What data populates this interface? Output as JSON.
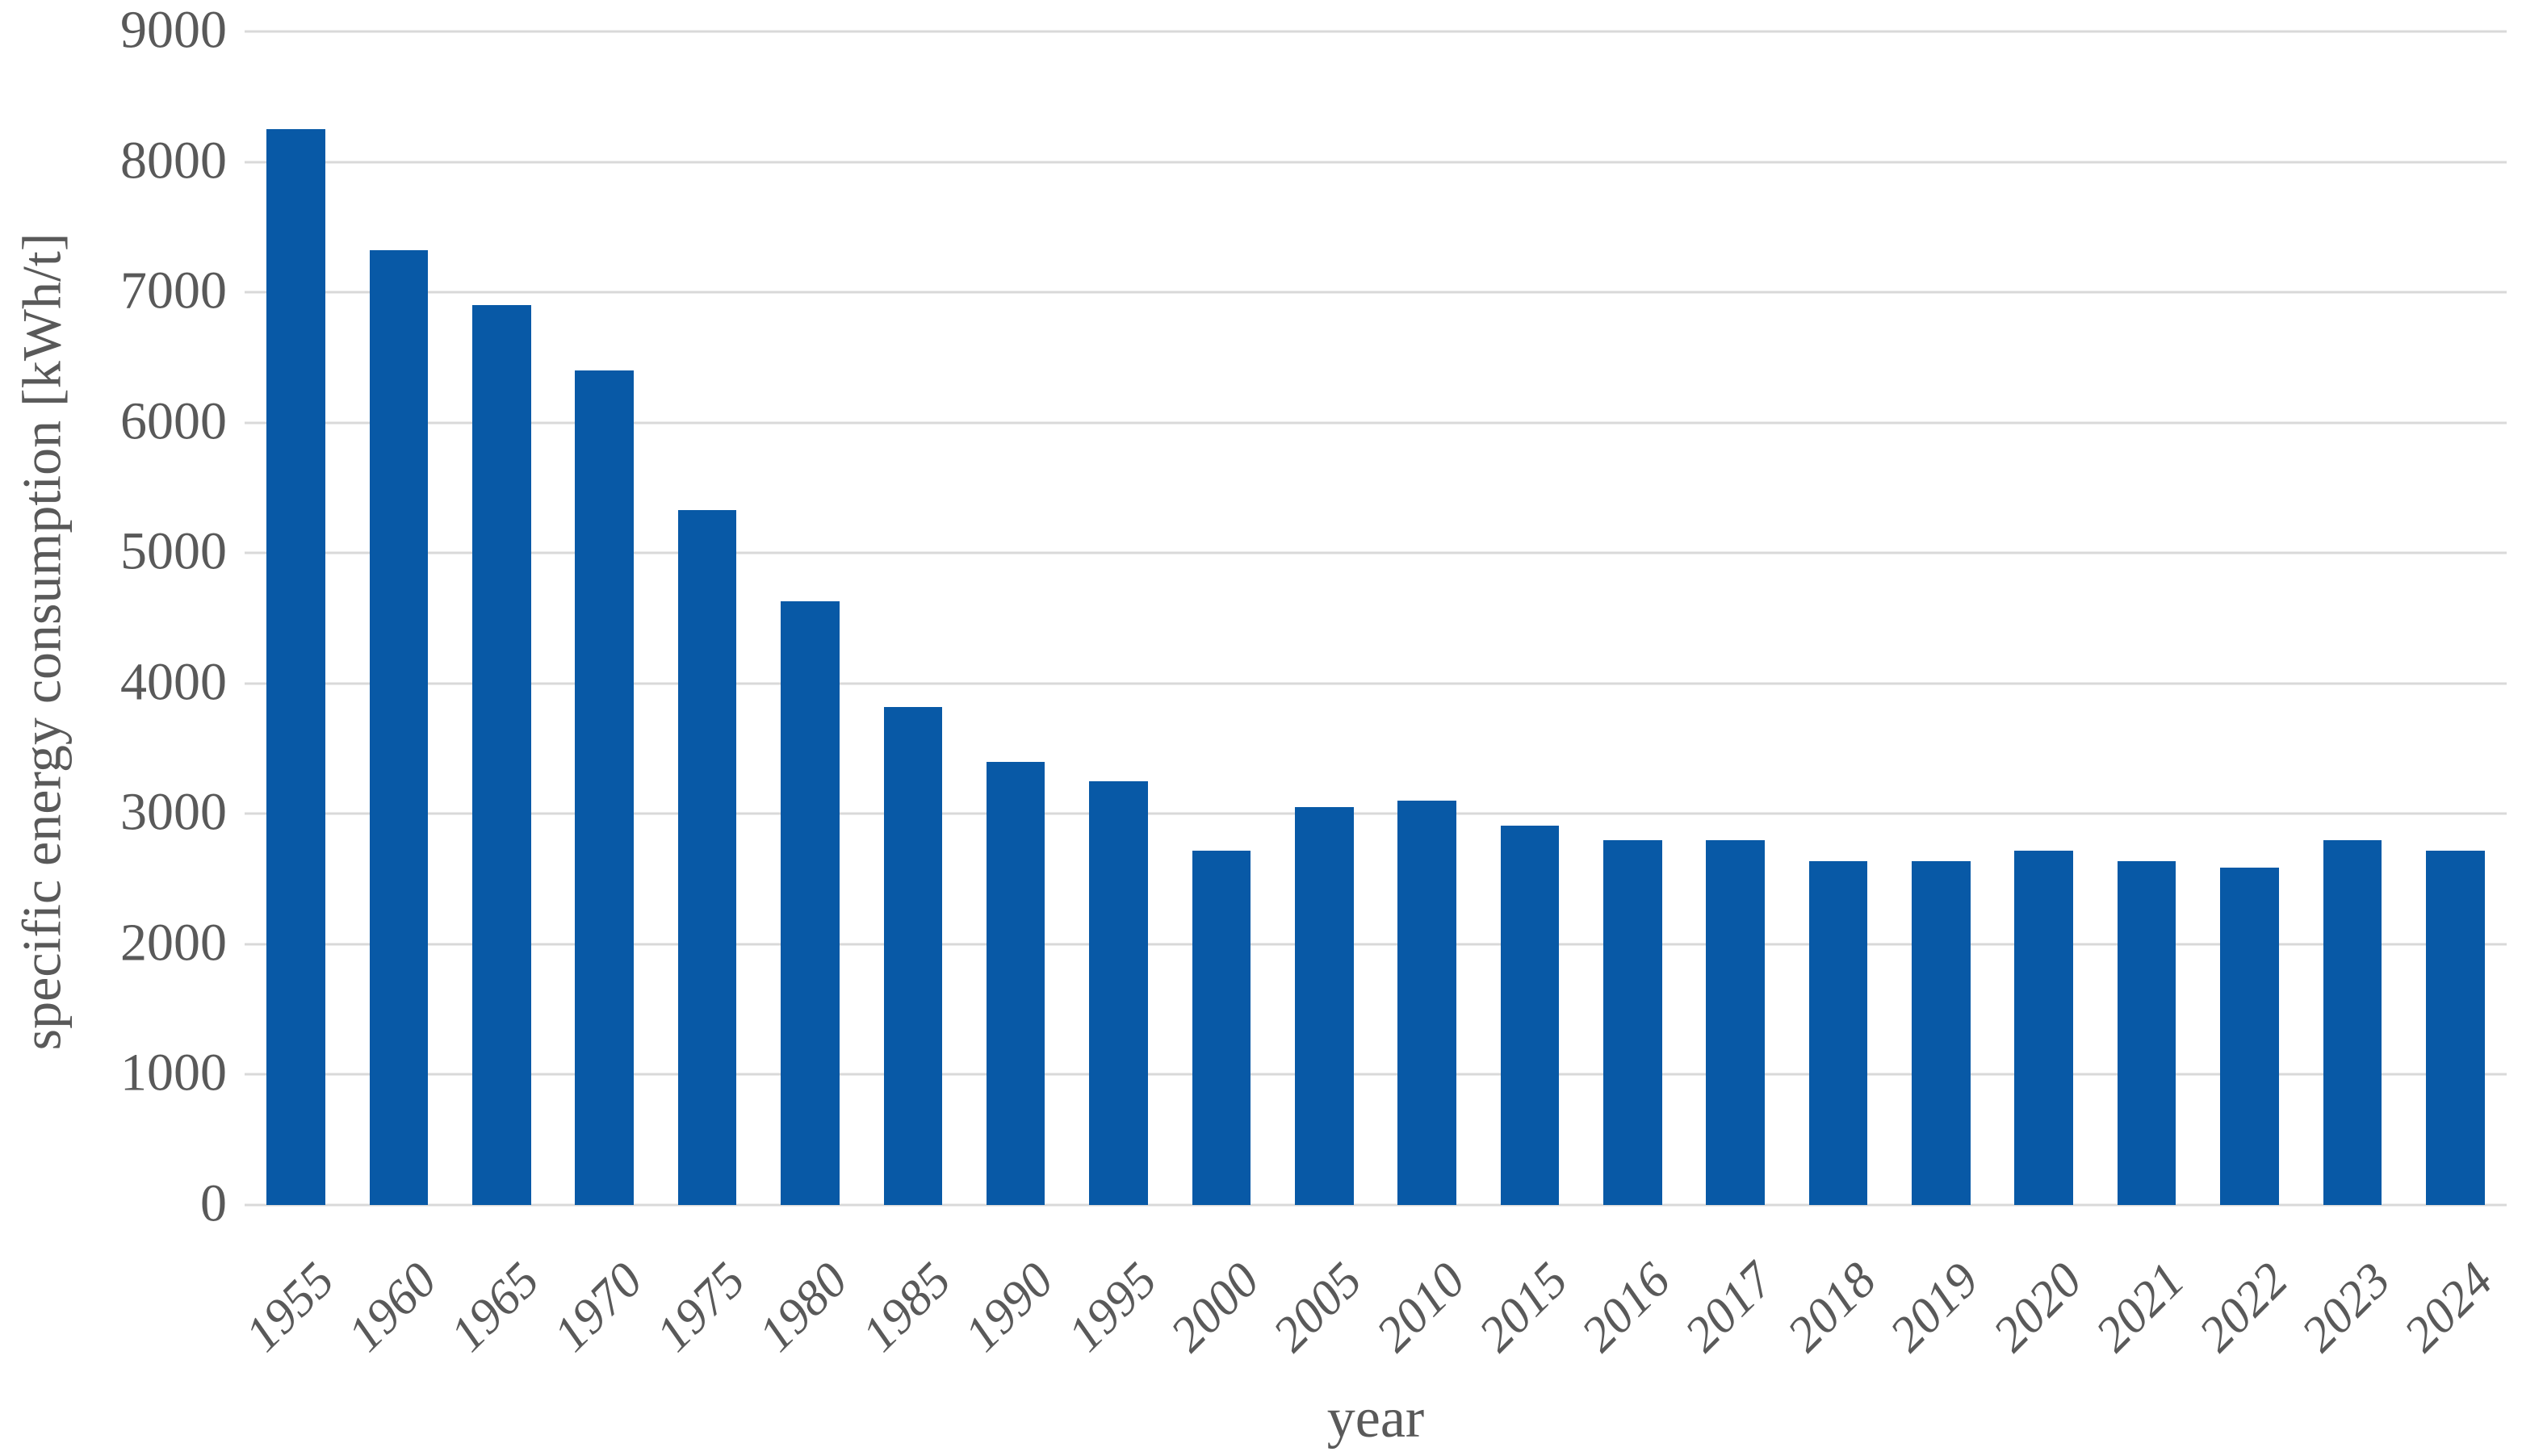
{
  "chart_data": {
    "type": "bar",
    "title": "",
    "xlabel": "year",
    "ylabel": "specific energy consumption [kWh/t]",
    "categories": [
      "1955",
      "1960",
      "1965",
      "1970",
      "1975",
      "1980",
      "1985",
      "1990",
      "1995",
      "2000",
      "2005",
      "2010",
      "2015",
      "2016",
      "2017",
      "2018",
      "2019",
      "2020",
      "2021",
      "2022",
      "2023",
      "2024"
    ],
    "values": [
      8250,
      7320,
      6900,
      6400,
      5330,
      4630,
      3820,
      3400,
      3250,
      2720,
      3050,
      3100,
      2910,
      2800,
      2800,
      2640,
      2640,
      2720,
      2640,
      2590,
      2800,
      2720
    ],
    "ylim": [
      0,
      9000
    ],
    "yticks": [
      0,
      1000,
      2000,
      3000,
      4000,
      5000,
      6000,
      7000,
      8000,
      9000
    ],
    "grid": true,
    "legend_position": "none",
    "bar_color": "#0859A6",
    "gridline_color": "#D9D9D9",
    "axis_text_color": "#595959"
  }
}
